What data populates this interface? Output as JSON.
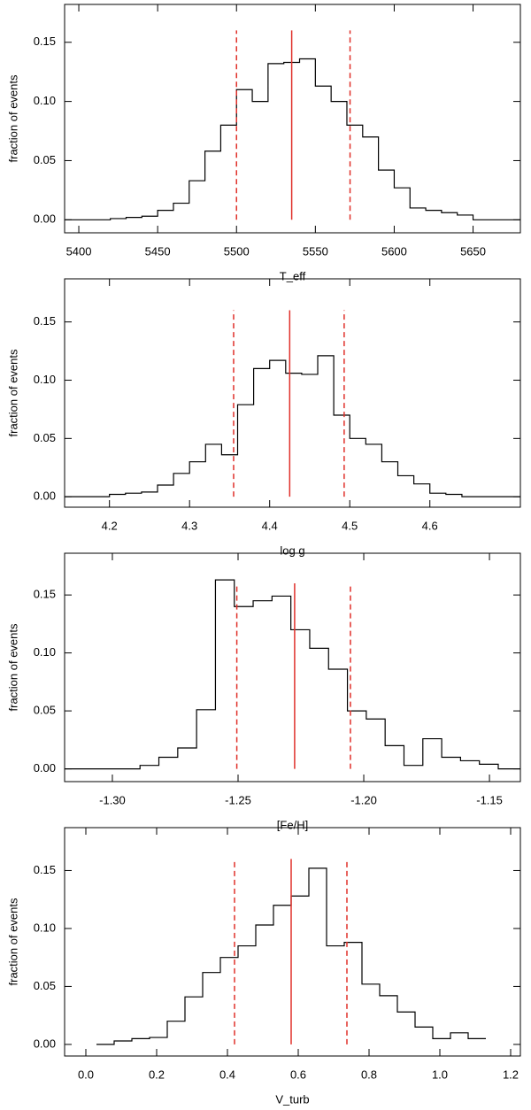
{
  "chart_data": [
    {
      "type": "histogram",
      "xlabel": "T_eff",
      "ylabel": "fraction of events",
      "bins": [
        5391,
        5420,
        5430,
        5440,
        5450,
        5460,
        5470,
        5480,
        5490,
        5500,
        5510,
        5520,
        5530,
        5540,
        5550,
        5560,
        5570,
        5580,
        5590,
        5600,
        5610,
        5620,
        5630,
        5640,
        5650,
        5680
      ],
      "values": [
        0,
        0.001,
        0.002,
        0.003,
        0.008,
        0.014,
        0.033,
        0.058,
        0.08,
        0.11,
        0.1,
        0.132,
        0.133,
        0.136,
        0.113,
        0.1,
        0.08,
        0.07,
        0.042,
        0.027,
        0.01,
        0.008,
        0.006,
        0.004,
        0
      ],
      "color": "#000000",
      "xlim": [
        5391,
        5680
      ],
      "xticks": [
        5400,
        5450,
        5500,
        5550,
        5600,
        5650
      ],
      "ylim": [
        -0.011,
        0.182
      ],
      "yticks": [
        {
          "value": 0,
          "label": "0.00"
        },
        {
          "value": 0.05,
          "label": "0.05"
        },
        {
          "value": 0.1,
          "label": "0.10"
        },
        {
          "value": 0.15,
          "label": "0.15"
        }
      ],
      "lines": [
        {
          "value": 5535,
          "style": "solid"
        },
        {
          "value": 5500,
          "style": "dashed"
        },
        {
          "value": 5572,
          "style": "dashed"
        }
      ],
      "line_color": "#e0302a"
    },
    {
      "type": "histogram",
      "xlabel": "log g",
      "ylabel": "fraction of events",
      "bins": [
        4.144,
        4.2,
        4.22,
        4.24,
        4.26,
        4.28,
        4.3,
        4.32,
        4.34,
        4.36,
        4.38,
        4.4,
        4.42,
        4.44,
        4.46,
        4.48,
        4.5,
        4.52,
        4.54,
        4.56,
        4.58,
        4.6,
        4.62,
        4.64,
        4.713
      ],
      "values": [
        0,
        0.002,
        0.003,
        0.004,
        0.01,
        0.02,
        0.03,
        0.045,
        0.036,
        0.079,
        0.11,
        0.117,
        0.106,
        0.105,
        0.121,
        0.07,
        0.05,
        0.045,
        0.03,
        0.018,
        0.011,
        0.003,
        0.002,
        0
      ],
      "color": "#000000",
      "xlim": [
        4.144,
        4.713
      ],
      "xticks": [
        4.2,
        4.3,
        4.4,
        4.5,
        4.6
      ],
      "ylim": [
        -0.009,
        0.187
      ],
      "yticks": [
        {
          "value": 0,
          "label": "0.00"
        },
        {
          "value": 0.05,
          "label": "0.05"
        },
        {
          "value": 0.1,
          "label": "0.10"
        },
        {
          "value": 0.15,
          "label": "0.15"
        }
      ],
      "lines": [
        {
          "value": 4.425,
          "style": "solid"
        },
        {
          "value": 4.355,
          "style": "dashed"
        },
        {
          "value": 4.493,
          "style": "dashed"
        }
      ],
      "line_color": "#e0302a"
    },
    {
      "type": "histogram",
      "xlabel": "[Fe/H]",
      "ylabel": "fraction of events",
      "bins": [
        -1.319,
        -1.289,
        -1.2815,
        -1.274,
        -1.2665,
        -1.259,
        -1.2515,
        -1.244,
        -1.2365,
        -1.229,
        -1.2215,
        -1.214,
        -1.2065,
        -1.199,
        -1.1915,
        -1.184,
        -1.1765,
        -1.169,
        -1.1615,
        -1.154,
        -1.1465,
        -1.1377
      ],
      "values": [
        0,
        0.003,
        0.01,
        0.018,
        0.051,
        0.163,
        0.14,
        0.145,
        0.149,
        0.12,
        0.104,
        0.086,
        0.05,
        0.043,
        0.02,
        0.003,
        0.026,
        0.01,
        0.007,
        0.004,
        0
      ],
      "color": "#000000",
      "xlim": [
        -1.319,
        -1.1377
      ],
      "xticks": [
        {
          "value": -1.3,
          "label": "-1.30"
        },
        {
          "value": -1.25,
          "label": "-1.25"
        },
        {
          "value": -1.2,
          "label": "-1.20"
        },
        {
          "value": -1.15,
          "label": "-1.15"
        }
      ],
      "ylim": [
        -0.011,
        0.186
      ],
      "yticks": [
        {
          "value": 0,
          "label": "0.00"
        },
        {
          "value": 0.05,
          "label": "0.05"
        },
        {
          "value": 0.1,
          "label": "0.10"
        },
        {
          "value": 0.15,
          "label": "0.15"
        }
      ],
      "lines": [
        {
          "value": -1.2275,
          "style": "solid"
        },
        {
          "value": -1.2505,
          "style": "dashed"
        },
        {
          "value": -1.2053,
          "style": "dashed"
        }
      ],
      "line_color": "#e0302a"
    },
    {
      "type": "histogram",
      "xlabel": "V_turb",
      "ylabel": "fraction of events",
      "bins": [
        0.03,
        0.08,
        0.13,
        0.18,
        0.23,
        0.28,
        0.33,
        0.38,
        0.43,
        0.48,
        0.53,
        0.58,
        0.63,
        0.68,
        0.73,
        0.78,
        0.83,
        0.88,
        0.93,
        0.98,
        1.03,
        1.08,
        1.13
      ],
      "values": [
        0,
        0.003,
        0.005,
        0.006,
        0.02,
        0.041,
        0.062,
        0.075,
        0.085,
        0.103,
        0.12,
        0.128,
        0.152,
        0.085,
        0.088,
        0.052,
        0.042,
        0.028,
        0.015,
        0.005,
        0.01,
        0.005
      ],
      "color": "#000000",
      "xlim": [
        -0.06,
        1.2275
      ],
      "xticks": [
        {
          "value": 0,
          "label": "0.0"
        },
        0.2,
        0.4,
        0.6,
        0.8,
        {
          "value": 1,
          "label": "1.0"
        },
        1.2
      ],
      "ylim": [
        -0.01,
        0.187
      ],
      "yticks": [
        {
          "value": 0,
          "label": "0.00"
        },
        {
          "value": 0.05,
          "label": "0.05"
        },
        {
          "value": 0.1,
          "label": "0.10"
        },
        {
          "value": 0.15,
          "label": "0.15"
        }
      ],
      "lines": [
        {
          "value": 0.58,
          "style": "solid"
        },
        {
          "value": 0.42,
          "style": "dashed"
        },
        {
          "value": 0.7375,
          "style": "dashed"
        }
      ],
      "line_color": "#e0302a"
    }
  ]
}
